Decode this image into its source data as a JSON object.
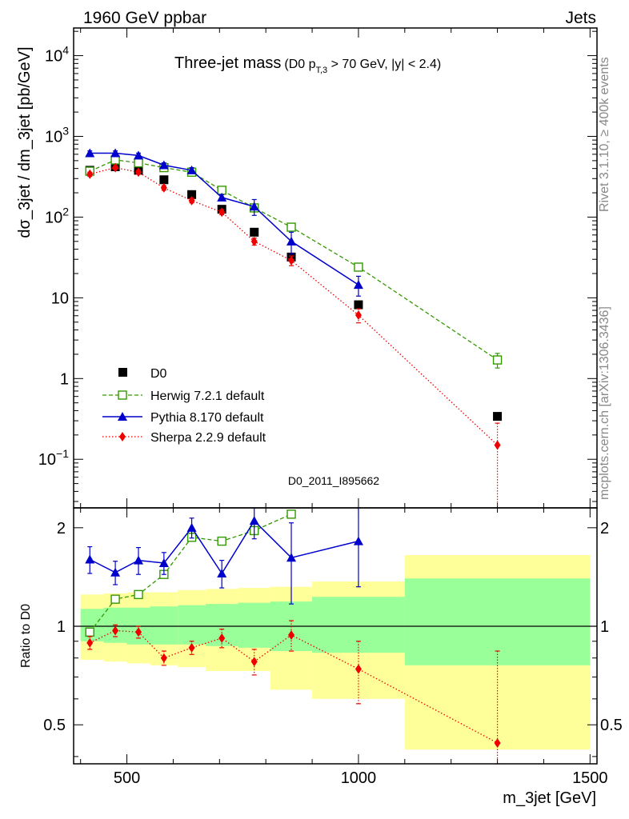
{
  "header": {
    "left": "1960 GeV ppbar",
    "right": "Jets"
  },
  "title": {
    "main": "Three-jet mass",
    "sub_prefix": "(D0 p",
    "sub_subscript": "T,3",
    "sub_suffix": " > 70 GeV, |y| < 2.4)"
  },
  "side_labels": {
    "rivet": "Rivet 3.1.10, ≥ 400k events",
    "mcplots": "mcplots.cern.ch [arXiv:1306.3436]"
  },
  "analysis_id": "D0_2011_I895662",
  "colors": {
    "data": "#000000",
    "herwig": "#339900",
    "pythia": "#0000cc",
    "sherpa": "#ee0000",
    "band_outer": "#ffff99",
    "band_inner": "#99ff99"
  },
  "chart_data": [
    {
      "type": "line",
      "panel": "main",
      "ylabel": "dσ_3jet / dm_3jet [pb/GeV]",
      "yscale": "log",
      "ylim": [
        0.025,
        22000
      ],
      "xlim": [
        385,
        1515
      ],
      "y_ticks": [
        {
          "value": 10000,
          "base": "10",
          "exp": "4"
        },
        {
          "value": 1000,
          "base": "10",
          "exp": "3"
        },
        {
          "value": 100,
          "base": "10",
          "exp": "2"
        },
        {
          "value": 10,
          "base": "10",
          "exp": ""
        },
        {
          "value": 1,
          "base": "1",
          "exp": ""
        },
        {
          "value": 0.1,
          "base": "10",
          "exp": "−1"
        }
      ],
      "legend_position": "bottom-left",
      "series": [
        {
          "name": "D0",
          "style": "data",
          "x": [
            420,
            475,
            525,
            580,
            640,
            705,
            775,
            855,
            1000,
            1300
          ],
          "y": [
            380,
            420,
            380,
            290,
            190,
            125,
            65,
            32,
            8.2,
            0.34
          ]
        },
        {
          "name": "Herwig 7.2.1 default",
          "style": "herwig",
          "x": [
            420,
            475,
            525,
            580,
            640,
            705,
            775,
            855,
            1000,
            1300
          ],
          "y": [
            370,
            510,
            470,
            410,
            360,
            215,
            130,
            75,
            24,
            1.7
          ],
          "err": [
            0,
            0,
            0,
            0,
            0,
            0,
            0,
            0,
            2,
            0.35
          ]
        },
        {
          "name": "Pythia 8.170 default",
          "style": "pythia",
          "x": [
            420,
            475,
            525,
            580,
            640,
            705,
            775,
            855,
            1000
          ],
          "y": [
            620,
            620,
            580,
            440,
            380,
            175,
            135,
            50,
            14.5
          ],
          "err": [
            40,
            40,
            40,
            30,
            30,
            15,
            30,
            15,
            4
          ]
        },
        {
          "name": "Sherpa 2.2.9 default",
          "style": "sherpa",
          "x": [
            420,
            475,
            525,
            580,
            640,
            705,
            775,
            855,
            1000,
            1300
          ],
          "y": [
            340,
            410,
            360,
            230,
            160,
            115,
            50,
            29,
            6.1,
            0.15
          ],
          "err": [
            20,
            20,
            20,
            15,
            10,
            8,
            5,
            4,
            1.2,
            0.13
          ]
        }
      ]
    },
    {
      "type": "line",
      "panel": "ratio",
      "xlabel": "m_3jet [GeV]",
      "ylabel": "Ratio to D0",
      "yscale": "log",
      "ylim": [
        0.38,
        2.3
      ],
      "xlim": [
        385,
        1515
      ],
      "x_ticks": [
        500,
        1000,
        1500
      ],
      "y_ticks": [
        {
          "value": 2,
          "label": "2"
        },
        {
          "value": 1,
          "label": "1"
        },
        {
          "value": 0.5,
          "label": "0.5"
        }
      ],
      "bands": {
        "edges": [
          400,
          450,
          500,
          550,
          610,
          670,
          740,
          810,
          900,
          1100,
          1500
        ],
        "outer_low": [
          0.79,
          0.78,
          0.77,
          0.76,
          0.75,
          0.73,
          0.73,
          0.64,
          0.6,
          0.42
        ],
        "outer_high": [
          1.25,
          1.26,
          1.27,
          1.27,
          1.29,
          1.3,
          1.31,
          1.32,
          1.37,
          1.65
        ],
        "inner_low": [
          0.9,
          0.89,
          0.88,
          0.88,
          0.88,
          0.87,
          0.86,
          0.84,
          0.83,
          0.76
        ],
        "inner_high": [
          1.13,
          1.14,
          1.14,
          1.15,
          1.16,
          1.17,
          1.18,
          1.19,
          1.23,
          1.4
        ]
      },
      "series": [
        {
          "name": "Herwig 7.2.1 default",
          "style": "herwig",
          "x": [
            420,
            475,
            525,
            580,
            640,
            705,
            775,
            855
          ],
          "y": [
            0.96,
            1.21,
            1.25,
            1.44,
            1.87,
            1.82,
            1.96,
            2.2
          ]
        },
        {
          "name": "Pythia 8.170 default",
          "style": "pythia",
          "x": [
            420,
            475,
            525,
            580,
            640,
            705,
            775,
            855,
            1000
          ],
          "y": [
            1.6,
            1.46,
            1.59,
            1.56,
            2.0,
            1.45,
            2.1,
            1.62,
            1.82
          ],
          "err": [
            0.15,
            0.12,
            0.15,
            0.12,
            0.14,
            0.14,
            0.25,
            0.45,
            0.5
          ]
        },
        {
          "name": "Sherpa 2.2.9 default",
          "style": "sherpa",
          "x": [
            420,
            475,
            525,
            580,
            640,
            705,
            775,
            855,
            1000,
            1300
          ],
          "y": [
            0.89,
            0.97,
            0.96,
            0.8,
            0.86,
            0.92,
            0.78,
            0.94,
            0.74,
            0.44
          ],
          "err": [
            0.04,
            0.04,
            0.04,
            0.04,
            0.04,
            0.06,
            0.07,
            0.1,
            0.16,
            0.4
          ]
        }
      ]
    }
  ]
}
